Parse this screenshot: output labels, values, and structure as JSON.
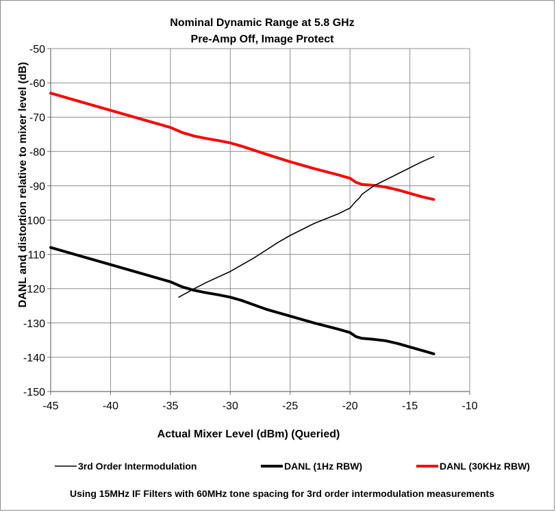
{
  "chart_data": {
    "type": "line",
    "title": [
      "Nominal Dynamic Range at 5.8 GHz",
      "Pre-Amp Off, Image Protect"
    ],
    "xlabel": "Actual Mixer Level (dBm) (Queried)",
    "ylabel": "DANL and distortion relative to mixer level (dB)",
    "xlim": [
      -45,
      -10
    ],
    "ylim": [
      -150,
      -50
    ],
    "x_ticks": [
      -45,
      -40,
      -35,
      -30,
      -25,
      -20,
      -15,
      -10
    ],
    "y_ticks": [
      -50,
      -60,
      -70,
      -80,
      -90,
      -100,
      -110,
      -120,
      -130,
      -140,
      -150
    ],
    "grid": true,
    "legend_position": "bottom",
    "series": [
      {
        "name": "3rd Order Intermodulation",
        "color": "#000000",
        "width": "thin",
        "x": [
          -34.3,
          -33,
          -32,
          -30,
          -28,
          -26,
          -25,
          -23,
          -21,
          -20,
          -19.5,
          -19.2,
          -19,
          -18,
          -16,
          -14,
          -13
        ],
        "y": [
          -122.5,
          -120,
          -118.2,
          -115,
          -111,
          -106.5,
          -104.5,
          -101,
          -98.2,
          -96.5,
          -94.5,
          -93.5,
          -92.5,
          -90,
          -86.5,
          -83,
          -81.5
        ]
      },
      {
        "name": "DANL (1Hz RBW)",
        "color": "#000000",
        "width": "thick",
        "x": [
          -45,
          -40,
          -35,
          -34,
          -33,
          -32,
          -31,
          -30,
          -29,
          -27,
          -25,
          -23,
          -21,
          -20,
          -19.5,
          -19,
          -18,
          -17,
          -16,
          -15,
          -14,
          -13
        ],
        "y": [
          -108,
          -113,
          -118,
          -119.5,
          -120.5,
          -121.2,
          -121.8,
          -122.5,
          -123.5,
          -126,
          -128,
          -130,
          -131.8,
          -132.8,
          -134,
          -134.5,
          -134.8,
          -135.2,
          -136,
          -137,
          -138,
          -139
        ]
      },
      {
        "name": "DANL (30KHz RBW)",
        "color": "#ff0000",
        "width": "thick",
        "x": [
          -45,
          -40,
          -35,
          -34,
          -33,
          -32,
          -31,
          -30,
          -29,
          -27,
          -25,
          -23,
          -21,
          -20,
          -19.5,
          -19,
          -18,
          -17,
          -16,
          -15,
          -14,
          -13
        ],
        "y": [
          -63,
          -68,
          -73,
          -74.5,
          -75.5,
          -76.2,
          -76.8,
          -77.5,
          -78.5,
          -80.8,
          -83,
          -85,
          -86.8,
          -87.8,
          -89,
          -89.6,
          -89.9,
          -90.4,
          -91.2,
          -92.2,
          -93.2,
          -94
        ]
      }
    ],
    "note": "Using 15MHz IF Filters with 60MHz tone spacing for 3rd order intermodulation measurements"
  }
}
